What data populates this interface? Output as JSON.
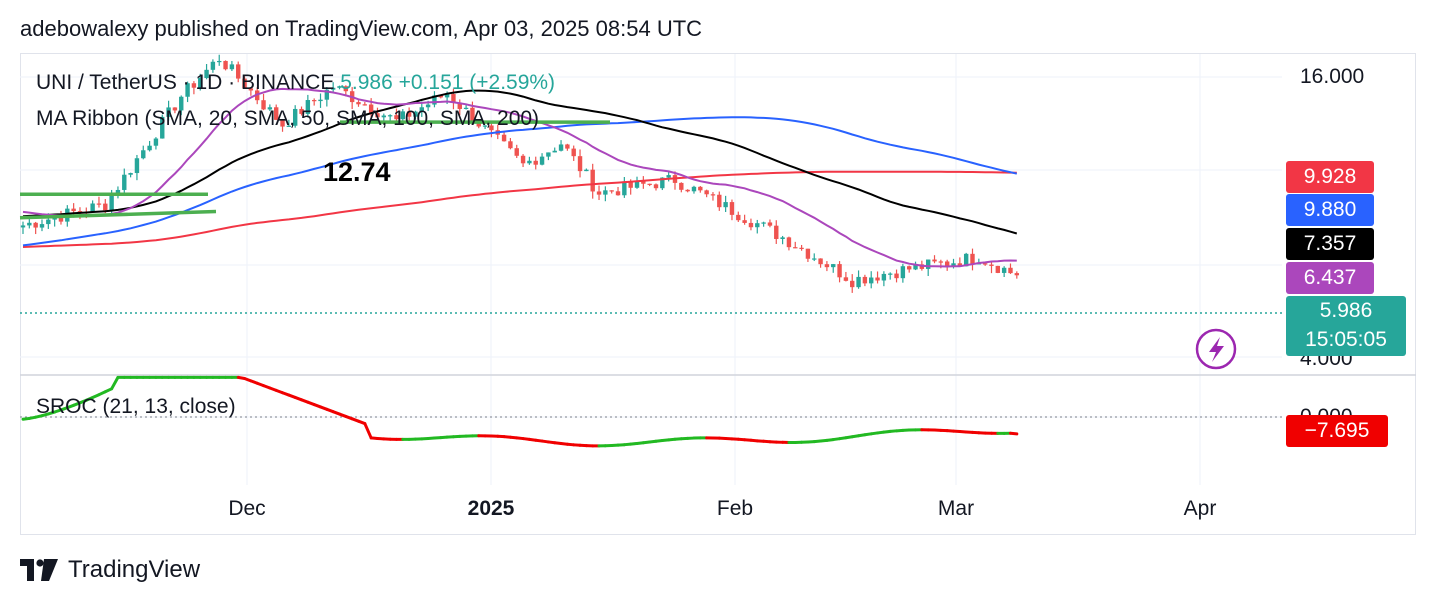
{
  "header": {
    "text": "adebowalexy published on TradingView.com, Apr 03, 2025 08:54 UTC"
  },
  "legend": {
    "symbol": "UNI / TetherUS · 1D · BINANCE",
    "price": "5.986",
    "change": "+0.151 (+2.59%)",
    "indicator": "MA Ribbon (SMA, 20, SMA, 50, SMA, 100, SMA, 200)",
    "oscillator": "SROC (21, 13, close)"
  },
  "annotation": {
    "text": "12.74"
  },
  "axis": {
    "y_ticks": [
      "16.000",
      "4.000"
    ],
    "osc_tick": "0.000",
    "x_ticks": [
      {
        "label": "Dec",
        "bold": false
      },
      {
        "label": "2025",
        "bold": true
      },
      {
        "label": "Feb",
        "bold": false
      },
      {
        "label": "Mar",
        "bold": false
      },
      {
        "label": "Apr",
        "bold": false
      }
    ]
  },
  "tags": {
    "sma200": "9.928",
    "sma100": "9.880",
    "sma50": "7.357",
    "sma20": "6.437",
    "price": "5.986",
    "countdown": "15:05:05",
    "sroc": "−7.695"
  },
  "colors": {
    "up": "#26a69a",
    "down": "#ef5350",
    "sma20": "#ab47bc",
    "sma50": "#000000",
    "sma100": "#2962ff",
    "sma200": "#f23645",
    "sroc_up": "#22b922",
    "sroc_down": "#f00000",
    "support": "#4caf50",
    "price_tag": "#26a69a",
    "sroc_tag": "#f23645",
    "sma200_tag": "#f23645",
    "sma100_tag": "#2962ff",
    "sma50_tag": "#000000",
    "sma20_tag": "#ab47bc"
  },
  "footer": {
    "brand": "TradingView",
    "logo_icon": "tradingview-logo-icon"
  },
  "chart_data": {
    "type": "candlestick",
    "title": "UNI / TetherUS · 1D · BINANCE",
    "y_scale": "log",
    "ylim": [
      4.0,
      16.0
    ],
    "x_ticks": [
      "Dec",
      "2025",
      "Feb",
      "Mar",
      "Apr"
    ],
    "price": {
      "last": 5.986,
      "change": 0.151,
      "change_pct": 2.59,
      "segments": [
        {
          "days": 14,
          "start": 7.6,
          "end": 8.5
        },
        {
          "days": 12,
          "start": 8.5,
          "end": 14.5
        },
        {
          "days": 6,
          "start": 14.5,
          "end": 17.5
        },
        {
          "days": 10,
          "start": 17.5,
          "end": 12.6
        },
        {
          "days": 8,
          "start": 12.6,
          "end": 15.2
        },
        {
          "days": 10,
          "start": 15.2,
          "end": 12.8
        },
        {
          "days": 8,
          "start": 12.8,
          "end": 14.7
        },
        {
          "days": 12,
          "start": 14.7,
          "end": 10.3
        },
        {
          "days": 6,
          "start": 10.3,
          "end": 11.5
        },
        {
          "days": 6,
          "start": 11.5,
          "end": 9.0
        },
        {
          "days": 12,
          "start": 9.0,
          "end": 9.6
        },
        {
          "days": 18,
          "start": 9.6,
          "end": 7.1
        },
        {
          "days": 10,
          "start": 7.1,
          "end": 5.85
        },
        {
          "days": 8,
          "start": 5.85,
          "end": 6.15
        },
        {
          "days": 12,
          "start": 6.15,
          "end": 6.55
        },
        {
          "days": 6,
          "start": 6.55,
          "end": 5.986
        }
      ]
    },
    "series": [
      {
        "name": "SMA 20",
        "last": 6.437
      },
      {
        "name": "SMA 50",
        "last": 7.357
      },
      {
        "name": "SMA 100",
        "last": 9.88
      },
      {
        "name": "SMA 200",
        "last": 9.928
      }
    ],
    "support_levels": [
      8.5,
      12.74
    ],
    "annotations": [
      "12.74"
    ],
    "oscillator": {
      "name": "SROC (21, 13, close)",
      "last": -7.695,
      "zero_line": 0.0
    }
  }
}
